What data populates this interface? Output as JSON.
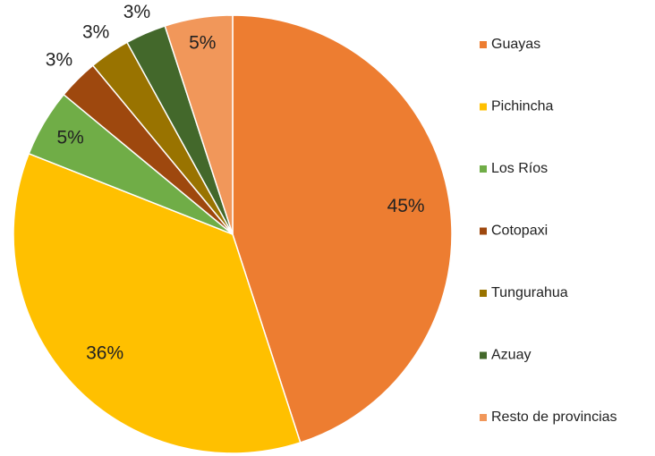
{
  "chart_data": {
    "type": "pie",
    "categories": [
      "Guayas",
      "Pichincha",
      "Los Ríos",
      "Cotopaxi",
      "Tungurahua",
      "Azuay",
      "Resto de provincias"
    ],
    "values": [
      45,
      36,
      5,
      3,
      3,
      3,
      5
    ],
    "value_labels": [
      "45%",
      "36%",
      "5%",
      "3%",
      "3%",
      "3%",
      "5%"
    ],
    "colors": [
      "#ED7D31",
      "#FFC000",
      "#70AD47",
      "#9E480E",
      "#997300",
      "#43682B",
      "#F1975A"
    ],
    "legend": "right"
  }
}
